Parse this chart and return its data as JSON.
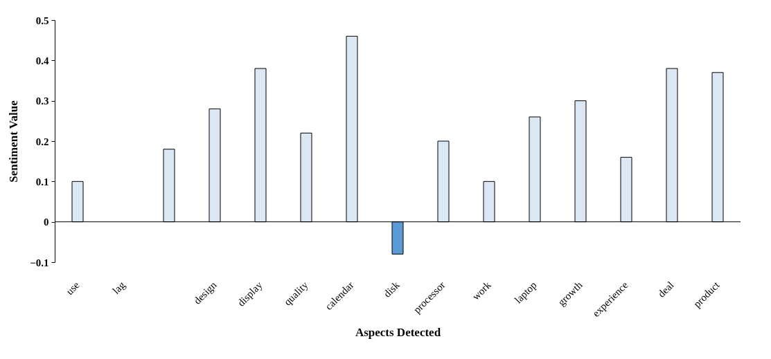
{
  "chart_data": {
    "type": "bar",
    "xlabel": "Aspects Detected",
    "ylabel": "Sentiment Value",
    "categories": [
      "use",
      "lag",
      null,
      "design",
      "display",
      "quality",
      "calendar",
      "disk",
      "processor",
      "work",
      "laptop",
      "growth",
      "experience",
      "deal",
      "product"
    ],
    "values": [
      0.1,
      null,
      0.18,
      0.28,
      0.38,
      0.22,
      0.46,
      -0.08,
      0.2,
      0.1,
      0.26,
      0.3,
      0.16,
      0.38,
      0.37
    ],
    "colors": [
      "#dbe8f4",
      "#dbe8f4",
      "#dbe8f4",
      "#dbe8f4",
      "#dbe8f4",
      "#dbe8f4",
      "#dbe8f4",
      "#5b9bd5",
      "#dbe8f4",
      "#dbe8f4",
      "#dbe8f4",
      "#dbe8f4",
      "#dbe8f4",
      "#dbe8f4",
      "#dbe8f4"
    ],
    "ylim": [
      -0.1,
      0.5
    ],
    "yticks": [
      -0.1,
      0,
      0.1,
      0.2,
      0.3,
      0.4,
      0.5
    ],
    "grid": false,
    "legend": false,
    "ref_lines": [
      {
        "axis": "y",
        "value": 0,
        "color": "#000000"
      }
    ]
  }
}
